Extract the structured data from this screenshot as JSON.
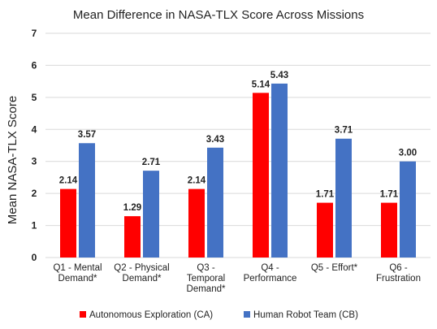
{
  "chart_data": {
    "type": "bar",
    "title": "Mean Difference in NASA-TLX Score Across Missions",
    "ylabel": "Mean NASA-TLX Score",
    "xlabel": "",
    "ylim": [
      0,
      7
    ],
    "yticks": [
      0,
      1,
      2,
      3,
      4,
      5,
      6,
      7
    ],
    "grid": true,
    "legend_position": "bottom",
    "categories": [
      [
        "Q1 - Mental",
        "Demand*"
      ],
      [
        "Q2 - Physical",
        "Demand*"
      ],
      [
        "Q3 -",
        "Temporal",
        "Demand*"
      ],
      [
        "Q4 -",
        "Performance"
      ],
      [
        "Q5 - Effort*"
      ],
      [
        "Q6 -",
        "Frustration"
      ]
    ],
    "series": [
      {
        "name": "Autonomous Exploration (CA)",
        "color": "#ff0000",
        "values": [
          2.14,
          1.29,
          2.14,
          5.14,
          1.71,
          1.71
        ],
        "labels": [
          "2.14",
          "1.29",
          "2.14",
          "5.14",
          "1.71",
          "1.71"
        ]
      },
      {
        "name": "Human Robot Team (CB)",
        "color": "#4472c4",
        "values": [
          3.57,
          2.71,
          3.43,
          5.43,
          3.71,
          3.0
        ],
        "labels": [
          "3.57",
          "2.71",
          "3.43",
          "5.43",
          "3.71",
          "3.00"
        ]
      }
    ],
    "gridline_color": "#d9d9d9"
  }
}
